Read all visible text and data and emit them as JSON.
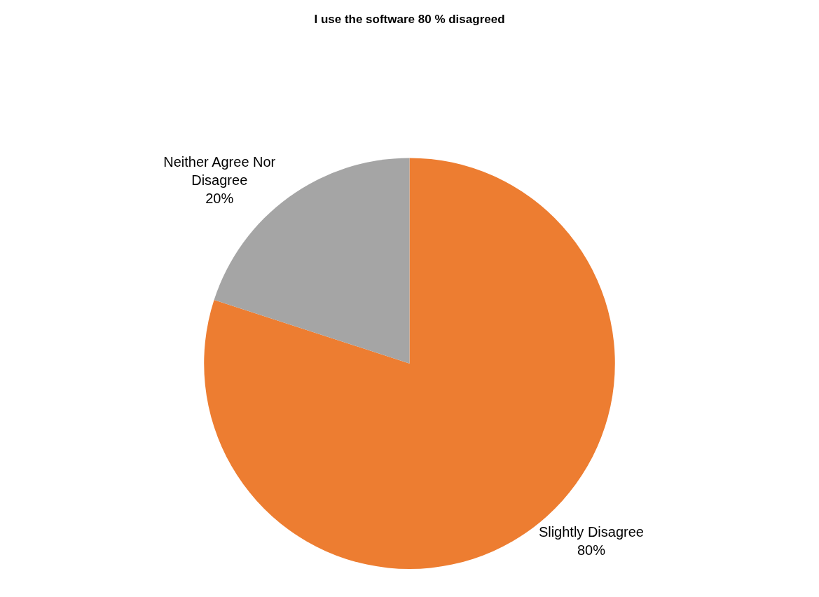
{
  "chart_data": {
    "type": "pie",
    "title": "I use the software 80 % disagreed",
    "categories": [
      "Slightly Disagree",
      "Neither Agree Nor Disagree"
    ],
    "values": [
      80,
      20
    ],
    "colors": [
      "#ed7d31",
      "#a5a5a5"
    ],
    "value_labels": [
      "80%",
      "20%"
    ],
    "legend": false
  }
}
